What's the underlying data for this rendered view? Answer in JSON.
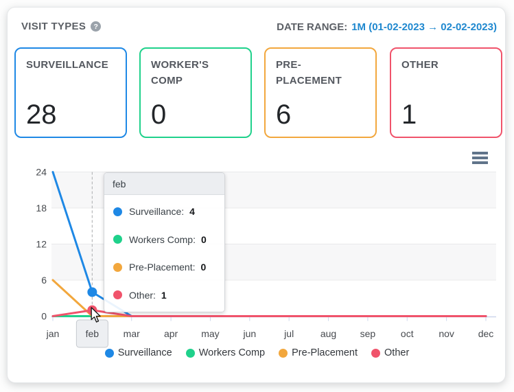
{
  "header": {
    "title": "VISIT TYPES",
    "help_glyph": "?",
    "date_range_label": "DATE RANGE:",
    "date_range_value": "1M (01-02-2023 → 02-02-2023)"
  },
  "cards": [
    {
      "label": "SURVEILLANCE",
      "value": "28",
      "color": "#1e88e5"
    },
    {
      "label": "WORKER'S COMP",
      "value": "0",
      "color": "#1fd18b"
    },
    {
      "label": "PRE-PLACEMENT",
      "value": "6",
      "color": "#f2a73d"
    },
    {
      "label": "OTHER",
      "value": "1",
      "color": "#f0536b"
    }
  ],
  "chart_data": {
    "type": "line",
    "x": [
      "jan",
      "feb",
      "mar",
      "apr",
      "may",
      "jun",
      "jul",
      "aug",
      "sep",
      "oct",
      "nov",
      "dec"
    ],
    "series": [
      {
        "name": "Surveillance",
        "color": "#1e88e5",
        "values": [
          24,
          4,
          0,
          0,
          0,
          0,
          0,
          0,
          0,
          0,
          0,
          0
        ]
      },
      {
        "name": "Workers Comp",
        "color": "#1fd18b",
        "values": [
          0,
          0,
          0,
          0,
          0,
          0,
          0,
          0,
          0,
          0,
          0,
          0
        ]
      },
      {
        "name": "Pre-Placement",
        "color": "#f2a73d",
        "values": [
          6,
          0,
          0,
          0,
          0,
          0,
          0,
          0,
          0,
          0,
          0,
          0
        ]
      },
      {
        "name": "Other",
        "color": "#f0536b",
        "values": [
          0,
          1,
          0,
          0,
          0,
          0,
          0,
          0,
          0,
          0,
          0,
          0
        ]
      }
    ],
    "ylim": [
      0,
      24
    ],
    "y_ticks": [
      0,
      6,
      12,
      18,
      24
    ],
    "xlabel": "",
    "ylabel": "",
    "grid": "horizontal-bands",
    "band_color": "#f7f7f8",
    "axis_color": "#ccd6eb",
    "gridline_color": "#e8e9ea",
    "crosshair_color": "#b6b8ba",
    "legend_position": "bottom",
    "hovered_category": "feb",
    "hovered_index": 1
  },
  "tooltip": {
    "title": "feb",
    "rows": [
      {
        "label": "Surveillance:",
        "value": "4",
        "color": "#1e88e5"
      },
      {
        "label": "Workers Comp:",
        "value": "0",
        "color": "#1fd18b"
      },
      {
        "label": "Pre-Placement:",
        "value": "0",
        "color": "#f2a73d"
      },
      {
        "label": "Other:",
        "value": "1",
        "color": "#f0536b"
      }
    ]
  },
  "legend": {
    "items": [
      {
        "label": "Surveillance",
        "color": "#1e88e5"
      },
      {
        "label": "Workers Comp",
        "color": "#1fd18b"
      },
      {
        "label": "Pre-Placement",
        "color": "#f2a73d"
      },
      {
        "label": "Other",
        "color": "#f0536b"
      }
    ]
  },
  "icons": {
    "help": "question-mark-circle",
    "chart_menu": "hamburger-menu",
    "pointer": "mouse-arrow-cursor"
  },
  "colors": {
    "date_range_blue": "#1f88cf",
    "panel_border": "#e4e6e8",
    "title_gray": "#5c6066"
  }
}
